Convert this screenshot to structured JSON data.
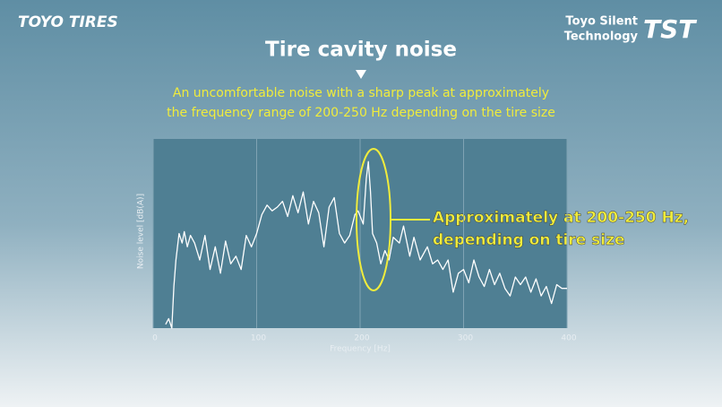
{
  "header": {
    "logo": "TOYO TIRES",
    "tagline": [
      "Toyo Silent",
      "Technology"
    ],
    "badge": "TST"
  },
  "chart_data": {
    "type": "line",
    "title": "Tire cavity noise",
    "subtitle": [
      "An uncomfortable noise with a sharp peak at approximately",
      "the frequency range of 200-250 Hz depending on the tire size"
    ],
    "annotation": [
      "Approximately at 200-250 Hz,",
      "depending on tire size"
    ],
    "xlabel": "Frequency [Hz]",
    "ylabel": "Noise level [dB(A)]",
    "xlim": [
      0,
      400
    ],
    "xticks": [
      0,
      100,
      200,
      300,
      400
    ],
    "ylim": [
      0,
      100
    ],
    "grid": true,
    "color": "#ffffff",
    "highlight_color": "#f0ec3c",
    "x": [
      12,
      15,
      18,
      20,
      22,
      25,
      28,
      30,
      33,
      36,
      40,
      45,
      50,
      55,
      60,
      65,
      70,
      75,
      80,
      85,
      90,
      95,
      100,
      105,
      110,
      115,
      120,
      125,
      130,
      135,
      140,
      145,
      150,
      155,
      160,
      165,
      170,
      175,
      180,
      185,
      190,
      195,
      198,
      203,
      206,
      208,
      210,
      212,
      216,
      220,
      224,
      228,
      232,
      238,
      242,
      248,
      252,
      258,
      265,
      270,
      275,
      280,
      285,
      290,
      295,
      300,
      305,
      310,
      315,
      320,
      325,
      330,
      335,
      340,
      345,
      350,
      355,
      360,
      365,
      370,
      375,
      380,
      385,
      390,
      395,
      398,
      400
    ],
    "values": [
      2,
      5,
      0,
      22,
      36,
      50,
      45,
      51,
      43,
      49,
      45,
      36,
      49,
      31,
      43,
      29,
      46,
      34,
      38,
      31,
      49,
      43,
      50,
      60,
      65,
      62,
      64,
      67,
      59,
      70,
      61,
      72,
      55,
      67,
      61,
      43,
      64,
      69,
      50,
      45,
      49,
      60,
      62,
      55,
      79,
      88,
      72,
      50,
      45,
      34,
      41,
      36,
      48,
      45,
      54,
      38,
      48,
      36,
      43,
      34,
      36,
      31,
      36,
      19,
      29,
      31,
      24,
      36,
      27,
      22,
      31,
      23,
      29,
      21,
      17,
      27,
      23,
      27,
      19,
      26,
      17,
      22,
      13,
      23,
      21,
      21,
      21
    ]
  }
}
